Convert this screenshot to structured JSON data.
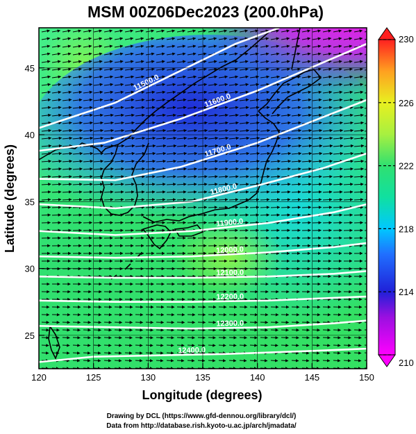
{
  "title": "MSM 00Z06Dec2023 (200.0hPa)",
  "chart_data": {
    "type": "map",
    "xlabel": "Longitude (degrees)",
    "ylabel": "Latitude  (degrees)",
    "xlim": [
      120,
      150
    ],
    "ylim": [
      22.5,
      48
    ],
    "xticks": [
      120,
      125,
      130,
      135,
      140,
      145,
      150
    ],
    "yticks": [
      25,
      30,
      35,
      40,
      45
    ],
    "xtick_labels": [
      "120",
      "125",
      "130",
      "135",
      "140",
      "145",
      "150"
    ],
    "ytick_labels": [
      "25",
      "30",
      "35",
      "40",
      "45"
    ],
    "colorbar": {
      "min": 210,
      "max": 230,
      "tick_values": [
        210,
        214,
        218,
        222,
        226,
        230
      ],
      "tick_labels": [
        "210",
        "214",
        "218",
        "222",
        "226",
        "230"
      ],
      "colors": [
        "#ff00ff",
        "#2020d8",
        "#00c8ff",
        "#30e070",
        "#d8ff20",
        "#ff2020"
      ]
    },
    "contours": [
      {
        "label": "11500.0",
        "points": [
          [
            120,
            40.5
          ],
          [
            127,
            42.4
          ],
          [
            133,
            44.8
          ],
          [
            138,
            46.8
          ],
          [
            142,
            48
          ]
        ]
      },
      {
        "label": "11600.0",
        "points": [
          [
            120,
            38.8
          ],
          [
            126,
            39.4
          ],
          [
            133,
            41.2
          ],
          [
            140,
            43.3
          ],
          [
            146,
            45.4
          ],
          [
            150,
            46.8
          ]
        ]
      },
      {
        "label": "11700.0",
        "points": [
          [
            120,
            36.7
          ],
          [
            127,
            36.6
          ],
          [
            133,
            37.6
          ],
          [
            140,
            39.4
          ],
          [
            145,
            41.0
          ],
          [
            150,
            42.6
          ]
        ]
      },
      {
        "label": "11800.0",
        "points": [
          [
            120,
            34.8
          ],
          [
            127,
            34.5
          ],
          [
            134,
            35.0
          ],
          [
            140,
            36.2
          ],
          [
            146,
            37.5
          ],
          [
            150,
            38.6
          ]
        ]
      },
      {
        "label": "11900.0",
        "points": [
          [
            120,
            32.8
          ],
          [
            127,
            32.5
          ],
          [
            134,
            32.8
          ],
          [
            141,
            33.4
          ],
          [
            147,
            34.2
          ],
          [
            150,
            34.8
          ]
        ]
      },
      {
        "label": "12000.0",
        "points": [
          [
            120,
            30.9
          ],
          [
            127,
            30.8
          ],
          [
            134,
            30.9
          ],
          [
            141,
            31.2
          ],
          [
            147,
            31.6
          ],
          [
            150,
            31.9
          ]
        ]
      },
      {
        "label": "12100.0",
        "points": [
          [
            120,
            29.4
          ],
          [
            127,
            29.3
          ],
          [
            134,
            29.3
          ],
          [
            141,
            29.4
          ],
          [
            147,
            29.6
          ],
          [
            150,
            29.8
          ]
        ]
      },
      {
        "label": "12200.0",
        "points": [
          [
            120,
            27.6
          ],
          [
            127,
            27.5
          ],
          [
            134,
            27.5
          ],
          [
            141,
            27.6
          ],
          [
            147,
            27.8
          ],
          [
            150,
            27.9
          ]
        ]
      },
      {
        "label": "12300.0",
        "points": [
          [
            120,
            25.7
          ],
          [
            127,
            25.6
          ],
          [
            134,
            25.5
          ],
          [
            141,
            25.6
          ],
          [
            147,
            25.9
          ],
          [
            150,
            26.1
          ]
        ]
      },
      {
        "label": "12400.0",
        "points": [
          [
            120,
            23.0
          ],
          [
            125,
            23.4
          ],
          [
            131,
            23.5
          ],
          [
            137,
            23.6
          ],
          [
            144,
            23.8
          ],
          [
            150,
            24.0
          ]
        ]
      }
    ],
    "color_field": "temperature (K)",
    "arrows": "wind vectors, westerly",
    "grid": true
  },
  "credits": {
    "line1": "Drawing by DCL (https://www.gfd-dennou.org/library/dcl/)",
    "line2": "Data from http://database.rish.kyoto-u.ac.jp/arch/jmadata/"
  }
}
